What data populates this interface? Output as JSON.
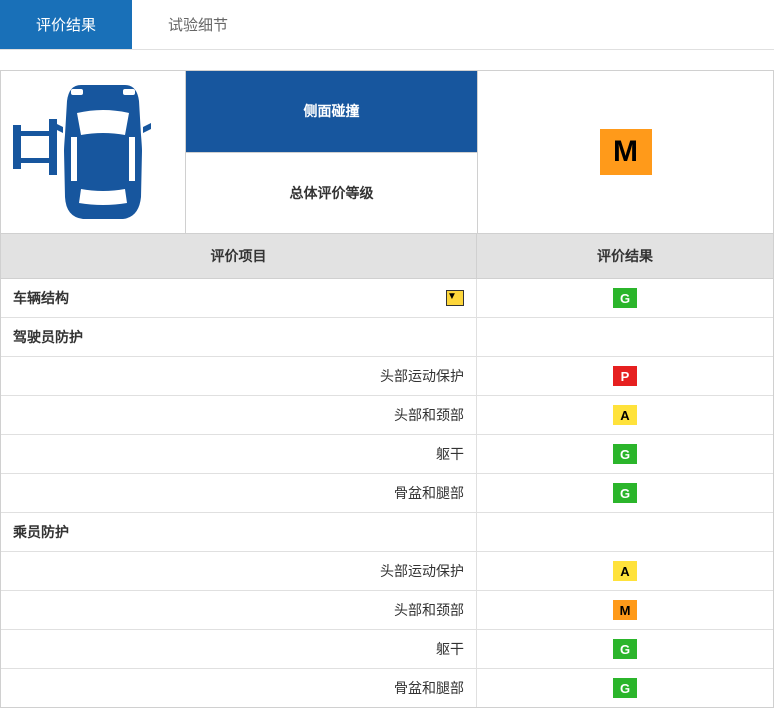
{
  "colors": {
    "active_tab_bg": "#1970b8",
    "panel_blue": "#17569e",
    "header_bg": "#e2e2e2",
    "border": "#d0d0d0"
  },
  "grade_styles": {
    "G": {
      "bg": "#2bb52b",
      "fg": "#ffffff"
    },
    "A": {
      "bg": "#ffe23b",
      "fg": "#000000"
    },
    "M": {
      "bg": "#ff9a1a",
      "fg": "#000000"
    },
    "P": {
      "bg": "#e62020",
      "fg": "#ffffff"
    }
  },
  "tabs": {
    "active": "评价结果",
    "inactive": "试验细节"
  },
  "panel": {
    "test_name": "侧面碰撞",
    "overall_label": "总体评价等级",
    "overall_grade": "M"
  },
  "table_headers": {
    "item": "评价项目",
    "result": "评价结果"
  },
  "rows": [
    {
      "label": "车辆结构",
      "align": "left",
      "bold": true,
      "grade": "G",
      "dropdown": true
    },
    {
      "label": "驾驶员防护",
      "align": "left",
      "bold": true,
      "grade": null
    },
    {
      "label": "头部运动保护",
      "align": "right",
      "bold": false,
      "grade": "P"
    },
    {
      "label": "头部和颈部",
      "align": "right",
      "bold": false,
      "grade": "A"
    },
    {
      "label": "躯干",
      "align": "right",
      "bold": false,
      "grade": "G"
    },
    {
      "label": "骨盆和腿部",
      "align": "right",
      "bold": false,
      "grade": "G"
    },
    {
      "label": "乘员防护",
      "align": "left",
      "bold": true,
      "grade": null
    },
    {
      "label": "头部运动保护",
      "align": "right",
      "bold": false,
      "grade": "A"
    },
    {
      "label": "头部和颈部",
      "align": "right",
      "bold": false,
      "grade": "M"
    },
    {
      "label": "躯干",
      "align": "right",
      "bold": false,
      "grade": "G"
    },
    {
      "label": "骨盆和腿部",
      "align": "right",
      "bold": false,
      "grade": "G"
    }
  ],
  "icons": {
    "dropdown_glyph": "▼"
  },
  "svg_colors": {
    "car": "#17569e",
    "barrier": "#17569e"
  }
}
